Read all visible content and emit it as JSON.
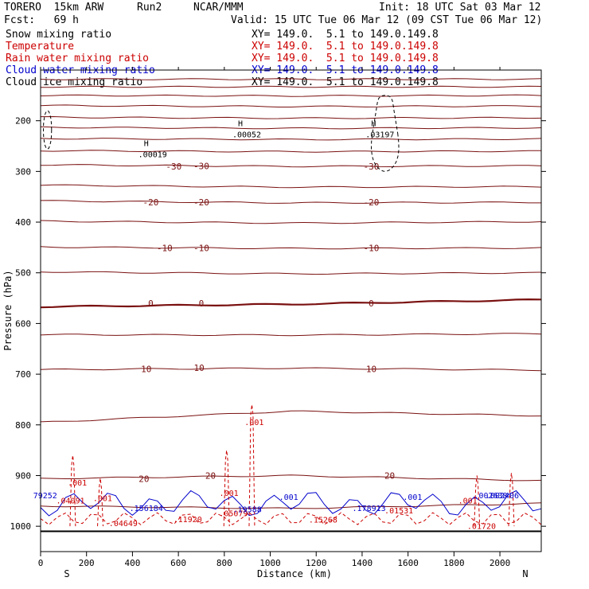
{
  "header": {
    "model": "TORERO  15km ARW",
    "run": "Run2",
    "org": "NCAR/MMM",
    "init": "Init: 18 UTC Sat 03 Mar 12",
    "fcst": "Fcst:   69 h",
    "valid": "Valid: 15 UTC Tue 06 Mar 12 (09 CST Tue 06 Mar 12)"
  },
  "legend": [
    {
      "label": "Snow mixing ratio",
      "color": "#000000",
      "range": ""
    },
    {
      "label": "Temperature",
      "color": "#cc0000",
      "range": "XY= 149.0.  5.1 to 149.0.149.8"
    },
    {
      "label": "Rain water mixing ratio",
      "color": "#cc0000",
      "range": "XY= 149.0.  5.1 to 149.0.149.8"
    },
    {
      "label": "Cloud water mixing ratio",
      "color": "#0000cc",
      "range": "XY= 149.0.  5.1 to 149.0.149.8"
    },
    {
      "label": "Cloud ice mixing ratio",
      "color": "#000000",
      "range": "XY= 149.0.  5.1 to 149.0.149.8"
    }
  ],
  "snow_range": "XY= 149.0.  5.1 to 149.0.149.8",
  "colors": {
    "temperature": "#7a1010",
    "rain": "#cc0000",
    "cloud_water": "#0000cc",
    "ice": "#000000"
  },
  "chart_data": {
    "type": "line",
    "title": "Cross section: pressure vs distance",
    "xlabel": "Distance (km)",
    "ylabel": "Pressure (hPa)",
    "xlim": [
      0,
      2180
    ],
    "ylim": [
      1050,
      100
    ],
    "x_ticks": [
      0,
      200,
      400,
      600,
      800,
      1000,
      1200,
      1400,
      1600,
      1800,
      2000
    ],
    "y_ticks": [
      200,
      300,
      400,
      500,
      600,
      700,
      800,
      900,
      1000
    ],
    "x_end_labels": {
      "left": "S",
      "right": "N"
    },
    "temperature_isotherms": [
      {
        "level": -55,
        "p": [
          118,
          118,
          118
        ]
      },
      {
        "level": -50,
        "p": [
          133,
          133,
          133
        ]
      },
      {
        "level": -45,
        "p": [
          150,
          151,
          150
        ]
      },
      {
        "level": -40,
        "p": [
          170,
          172,
          171
        ]
      },
      {
        "level": -35,
        "p": [
          193,
          195,
          194
        ]
      },
      {
        "level": -30,
        "p": [
          213,
          215,
          214
        ]
      },
      {
        "level": -30,
        "p": [
          235,
          237,
          236
        ]
      },
      {
        "level": -25,
        "p": [
          259,
          261,
          260
        ]
      },
      {
        "level": -30,
        "p": [
          287,
          290,
          289
        ]
      },
      {
        "level": -25,
        "p": [
          327,
          331,
          330
        ]
      },
      {
        "level": -20,
        "p": [
          358,
          362,
          361
        ]
      },
      {
        "level": -15,
        "p": [
          398,
          402,
          399
        ]
      },
      {
        "level": -10,
        "p": [
          449,
          452,
          451
        ]
      },
      {
        "level": -5,
        "p": [
          498,
          502,
          500
        ]
      },
      {
        "level": 0,
        "p": [
          567,
          562,
          553
        ]
      },
      {
        "level": 5,
        "p": [
          622,
          623,
          620
        ]
      },
      {
        "level": 10,
        "p": [
          691,
          688,
          692
        ]
      },
      {
        "level": 15,
        "p": [
          795,
          773,
          782
        ]
      },
      {
        "level": 20,
        "p": [
          906,
          900,
          910
        ]
      },
      {
        "level": 25,
        "p": [
          960,
          965,
          955
        ]
      }
    ],
    "isotherm_labels": [
      {
        "text": "-30",
        "x": 580,
        "p": 290
      },
      {
        "text": "-30",
        "x": 700,
        "p": 289
      },
      {
        "text": "-30",
        "x": 1440,
        "p": 290
      },
      {
        "text": "-20",
        "x": 480,
        "p": 361
      },
      {
        "text": "-20",
        "x": 700,
        "p": 361
      },
      {
        "text": "-20",
        "x": 1440,
        "p": 361
      },
      {
        "text": "-10",
        "x": 540,
        "p": 451
      },
      {
        "text": "-10",
        "x": 700,
        "p": 451
      },
      {
        "text": "-10",
        "x": 1440,
        "p": 451
      },
      {
        "text": "0",
        "x": 480,
        "p": 560
      },
      {
        "text": "0",
        "x": 700,
        "p": 560
      },
      {
        "text": "0",
        "x": 1440,
        "p": 560
      },
      {
        "text": "10",
        "x": 460,
        "p": 690
      },
      {
        "text": "10",
        "x": 690,
        "p": 687
      },
      {
        "text": "10",
        "x": 1440,
        "p": 690
      },
      {
        "text": "20",
        "x": 450,
        "p": 906
      },
      {
        "text": "20",
        "x": 740,
        "p": 900
      },
      {
        "text": "20",
        "x": 1520,
        "p": 900
      }
    ],
    "maxima_labels": [
      {
        "text": "H",
        "value": ".00052",
        "x": 870,
        "p": 220,
        "color": "#000000"
      },
      {
        "text": "H",
        "value": ".00019",
        "x": 460,
        "p": 259,
        "color": "#000000"
      },
      {
        "text": "H",
        "value": ".03197",
        "x": 1450,
        "p": 220,
        "color": "#000000"
      }
    ],
    "rain_labels": [
      ".001",
      ".001",
      ".001",
      ".001",
      ".01720",
      ".04091",
      ".04649",
      ".11920",
      ".05079",
      ".15268",
      ".01531",
      ".001"
    ],
    "cloud_labels": [
      "79252",
      ".156184",
      ".19588",
      ".001",
      ".178913",
      ".001",
      ".002638",
      ".002406"
    ],
    "surface_p": 1010
  }
}
